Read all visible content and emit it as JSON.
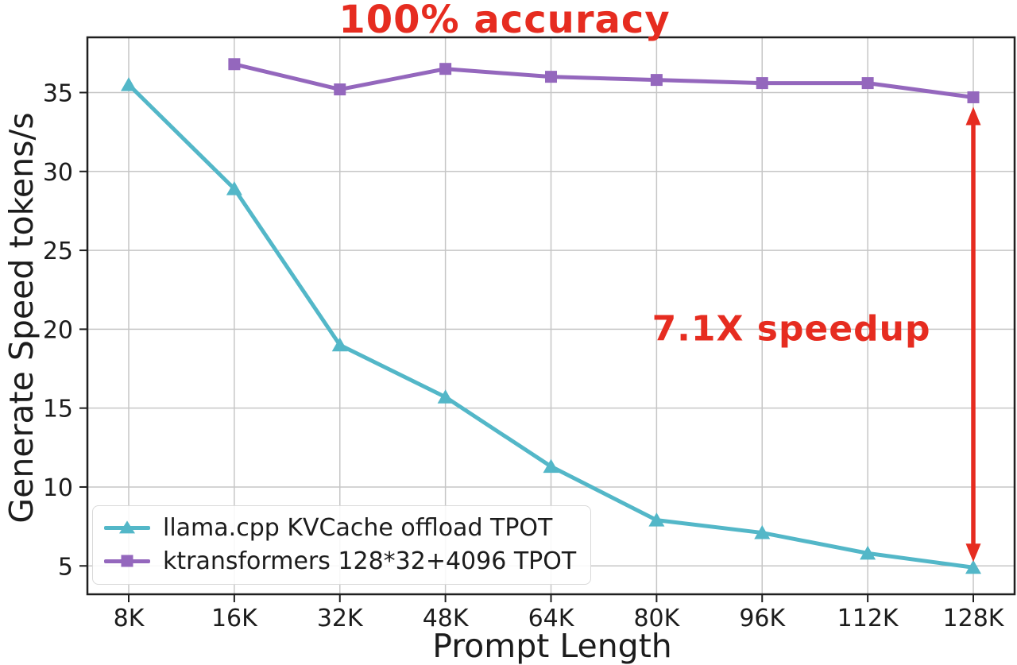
{
  "chart_data": {
    "type": "line",
    "title": "100% accuracy",
    "title_color": "#e62c20",
    "xlabel": "Prompt Length",
    "ylabel": "Generate Speed tokens/s",
    "categories": [
      "8K",
      "16K",
      "32K",
      "48K",
      "64K",
      "80K",
      "96K",
      "112K",
      "128K"
    ],
    "y_ticks": [
      5,
      10,
      15,
      20,
      25,
      30,
      35
    ],
    "ylim": [
      3.2,
      38.5
    ],
    "grid": true,
    "legend_position": "lower-left",
    "series": [
      {
        "name": "llama.cpp KVCache offload TPOT",
        "color": "#53b7c8",
        "marker": "triangle",
        "values": [
          35.5,
          28.9,
          19.0,
          15.7,
          11.3,
          7.9,
          7.1,
          5.8,
          4.9
        ]
      },
      {
        "name": "ktransformers 128*32+4096 TPOT",
        "color": "#9467bd",
        "marker": "square",
        "values": [
          null,
          36.8,
          35.2,
          36.5,
          36.0,
          35.8,
          35.6,
          35.6,
          34.7
        ]
      }
    ],
    "annotations": [
      {
        "type": "text",
        "text": "7.1X speedup",
        "color": "#e62c20"
      },
      {
        "type": "double_arrow",
        "x_category": "128K",
        "value_top": 34.7,
        "value_bottom": 4.9,
        "color": "#e62c20"
      }
    ],
    "colors": {
      "grid": "#c6c6c6",
      "spine": "#1f1f1f",
      "tick_text": "#1c1c1c"
    }
  }
}
